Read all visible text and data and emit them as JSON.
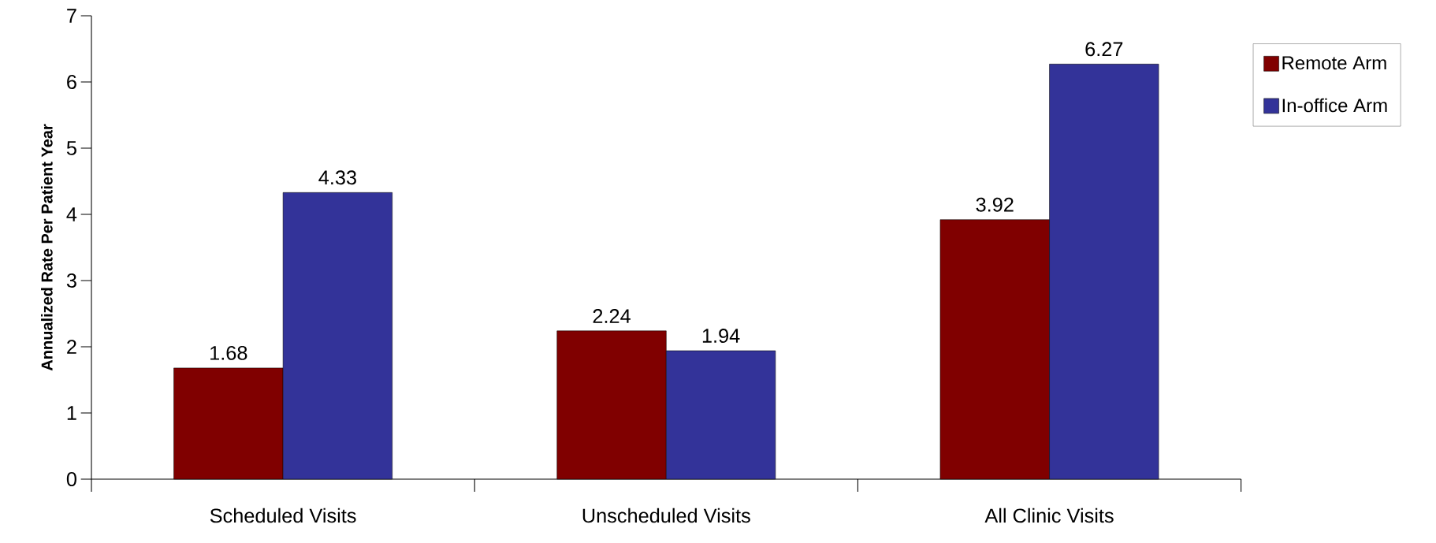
{
  "chart_data": {
    "type": "bar",
    "ylabel": "Annualized Rate Per Patient Year",
    "categories": [
      "Scheduled Visits",
      "Unscheduled Visits",
      "All Clinic Visits"
    ],
    "series": [
      {
        "name": "Remote Arm",
        "color": "#800000",
        "values": [
          1.68,
          2.24,
          3.92
        ]
      },
      {
        "name": "In-office Arm",
        "color": "#333399",
        "values": [
          4.33,
          1.94,
          6.27
        ]
      }
    ],
    "ylim": [
      0,
      7
    ],
    "yticks": [
      0,
      1,
      2,
      3,
      4,
      5,
      6,
      7
    ],
    "grid": false,
    "legend": "top right",
    "data_labels": true
  }
}
